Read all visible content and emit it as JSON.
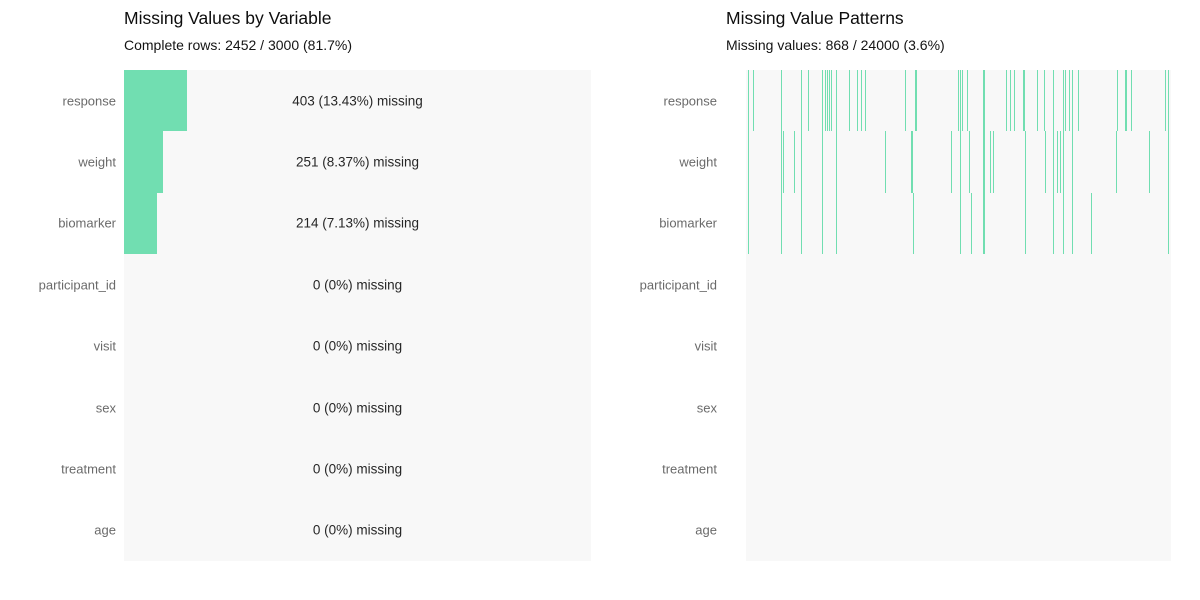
{
  "accent_color": "#71deb1",
  "plot_background": "#f8f8f8",
  "chart_data": [
    {
      "type": "bar",
      "orientation": "horizontal",
      "title": "Missing Values by Variable",
      "subtitle": "Complete rows: 2452 / 3000 (81.7%)",
      "categories": [
        "response",
        "weight",
        "biomarker",
        "participant_id",
        "visit",
        "sex",
        "treatment",
        "age"
      ],
      "values": [
        403,
        251,
        214,
        0,
        0,
        0,
        0,
        0
      ],
      "pct_missing": [
        13.43,
        8.37,
        7.13,
        0,
        0,
        0,
        0,
        0
      ],
      "bar_labels": [
        "403 (13.43%) missing",
        "251 (8.37%) missing",
        "214 (7.13%) missing",
        "0 (0%) missing",
        "0 (0%) missing",
        "0 (0%) missing",
        "0 (0%) missing",
        "0 (0%) missing"
      ],
      "xlim": [
        0,
        100
      ],
      "grid": false,
      "legend": "none",
      "bar_color": "#71deb1"
    },
    {
      "type": "heatmap",
      "title": "Missing Value Patterns",
      "subtitle": "Missing values: 868 / 24000 (3.6%)",
      "categories": [
        "response",
        "weight",
        "biomarker",
        "participant_id",
        "visit",
        "sex",
        "treatment",
        "age"
      ],
      "n_observations": 3000,
      "n_cells": 24000,
      "n_missing": 868,
      "pct_missing_total": 3.6,
      "missing_color": "#71deb1",
      "present_color": "#f8f8f8",
      "legend": "none",
      "lines": [
        {
          "x": 0.004,
          "rows": [
            0,
            1,
            2
          ],
          "px": 1
        },
        {
          "x": 0.017,
          "rows": [
            0
          ],
          "px": 1
        },
        {
          "x": 0.0816,
          "rows": [
            0,
            1,
            2
          ],
          "px": 1
        },
        {
          "x": 0.087,
          "rows": [
            1
          ],
          "px": 1
        },
        {
          "x": 0.113,
          "rows": [
            1
          ],
          "px": 1
        },
        {
          "x": 0.1294,
          "rows": [
            0,
            1,
            2
          ],
          "px": 1
        },
        {
          "x": 0.1459,
          "rows": [
            0
          ],
          "px": 1
        },
        {
          "x": 0.1788,
          "rows": [
            0,
            1,
            2
          ],
          "px": 1
        },
        {
          "x": 0.1852,
          "rows": [
            0
          ],
          "px": 1
        },
        {
          "x": 0.1899,
          "rows": [
            0
          ],
          "px": 1
        },
        {
          "x": 0.1946,
          "rows": [
            0
          ],
          "px": 1
        },
        {
          "x": 0.1993,
          "rows": [
            0
          ],
          "px": 1
        },
        {
          "x": 0.2118,
          "rows": [
            0,
            1,
            2
          ],
          "px": 1
        },
        {
          "x": 0.2424,
          "rows": [
            0
          ],
          "px": 1
        },
        {
          "x": 0.2612,
          "rows": [
            0
          ],
          "px": 1
        },
        {
          "x": 0.2706,
          "rows": [
            0
          ],
          "px": 1
        },
        {
          "x": 0.28,
          "rows": [
            0
          ],
          "px": 1
        },
        {
          "x": 0.3271,
          "rows": [
            1
          ],
          "px": 1
        },
        {
          "x": 0.3734,
          "rows": [
            0
          ],
          "px": 1
        },
        {
          "x": 0.3894,
          "rows": [
            1
          ],
          "px": 2
        },
        {
          "x": 0.3941,
          "rows": [
            2
          ],
          "px": 1
        },
        {
          "x": 0.3988,
          "rows": [
            0
          ],
          "px": 2
        },
        {
          "x": 0.4831,
          "rows": [
            1
          ],
          "px": 1
        },
        {
          "x": 0.4995,
          "rows": [
            0
          ],
          "px": 1
        },
        {
          "x": 0.5042,
          "rows": [
            0,
            1,
            2
          ],
          "px": 1
        },
        {
          "x": 0.5089,
          "rows": [
            0
          ],
          "px": 1
        },
        {
          "x": 0.5207,
          "rows": [
            0
          ],
          "px": 1
        },
        {
          "x": 0.5254,
          "rows": [
            1
          ],
          "px": 1
        },
        {
          "x": 0.5287,
          "rows": [
            2
          ],
          "px": 1
        },
        {
          "x": 0.5584,
          "rows": [
            0,
            1,
            2
          ],
          "px": 2
        },
        {
          "x": 0.5748,
          "rows": [
            1
          ],
          "px": 1
        },
        {
          "x": 0.5819,
          "rows": [
            1
          ],
          "px": 1
        },
        {
          "x": 0.6111,
          "rows": [
            0
          ],
          "px": 1
        },
        {
          "x": 0.6212,
          "rows": [
            0
          ],
          "px": 1
        },
        {
          "x": 0.6306,
          "rows": [
            0
          ],
          "px": 1
        },
        {
          "x": 0.6529,
          "rows": [
            0
          ],
          "px": 2
        },
        {
          "x": 0.6553,
          "rows": [
            1,
            2
          ],
          "px": 1
        },
        {
          "x": 0.684,
          "rows": [
            0
          ],
          "px": 1
        },
        {
          "x": 0.7012,
          "rows": [
            0
          ],
          "px": 1
        },
        {
          "x": 0.7035,
          "rows": [
            1
          ],
          "px": 1
        },
        {
          "x": 0.7216,
          "rows": [
            0,
            1,
            2
          ],
          "px": 1
        },
        {
          "x": 0.731,
          "rows": [
            1
          ],
          "px": 1
        },
        {
          "x": 0.7388,
          "rows": [
            1
          ],
          "px": 1
        },
        {
          "x": 0.7466,
          "rows": [
            0,
            1,
            2
          ],
          "px": 1
        },
        {
          "x": 0.7513,
          "rows": [
            0
          ],
          "px": 1
        },
        {
          "x": 0.7607,
          "rows": [
            0
          ],
          "px": 1
        },
        {
          "x": 0.7664,
          "rows": [
            0,
            1,
            2
          ],
          "px": 1
        },
        {
          "x": 0.7819,
          "rows": [
            0
          ],
          "px": 1
        },
        {
          "x": 0.811,
          "rows": [
            2
          ],
          "px": 1
        },
        {
          "x": 0.8699,
          "rows": [
            1
          ],
          "px": 1
        },
        {
          "x": 0.8722,
          "rows": [
            0
          ],
          "px": 1
        },
        {
          "x": 0.8929,
          "rows": [
            0
          ],
          "px": 2
        },
        {
          "x": 0.9059,
          "rows": [
            0
          ],
          "px": 1
        },
        {
          "x": 0.9489,
          "rows": [
            1
          ],
          "px": 1
        },
        {
          "x": 0.9859,
          "rows": [
            0
          ],
          "px": 1
        },
        {
          "x": 0.9937,
          "rows": [
            0,
            1,
            2
          ],
          "px": 1
        }
      ]
    }
  ]
}
